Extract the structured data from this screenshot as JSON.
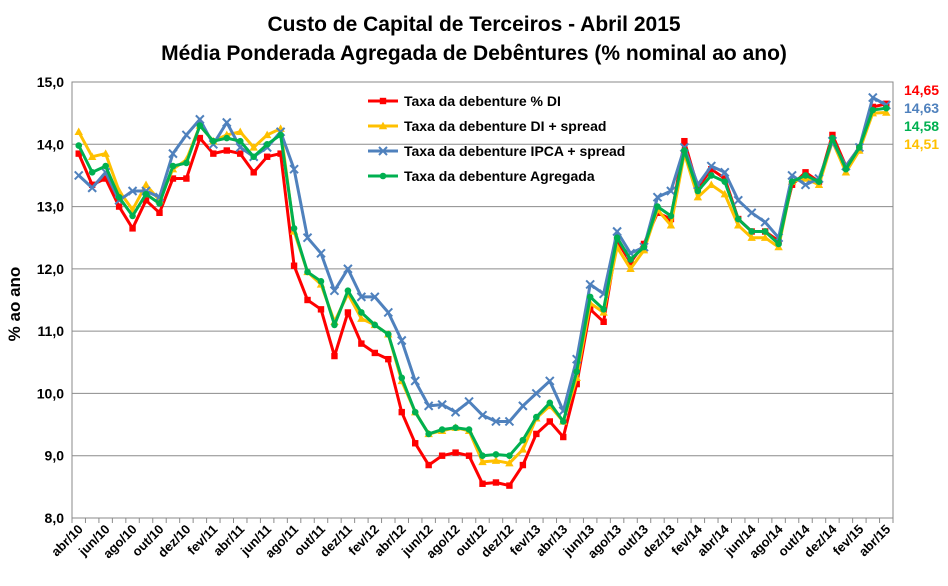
{
  "chart_data": {
    "type": "line",
    "title": "Custo de Capital de Terceiros - Abril 2015",
    "subtitle": "Média Ponderada Agregada de Debêntures (% nominal ao ano)",
    "xlabel": "",
    "ylabel": "% ao ano",
    "ylim": [
      8.0,
      15.0
    ],
    "y_ticks": [
      "8,0",
      "9,0",
      "10,0",
      "11,0",
      "12,0",
      "13,0",
      "14,0",
      "15,0"
    ],
    "grid": true,
    "legend_position": "top-center",
    "x": [
      "abr/10",
      "mai/10",
      "jun/10",
      "jul/10",
      "ago/10",
      "set/10",
      "out/10",
      "nov/10",
      "dez/10",
      "jan/11",
      "fev/11",
      "mar/11",
      "abr/11",
      "mai/11",
      "jun/11",
      "jul/11",
      "ago/11",
      "set/11",
      "out/11",
      "nov/11",
      "dez/11",
      "jan/12",
      "fev/12",
      "mar/12",
      "abr/12",
      "mai/12",
      "jun/12",
      "jul/12",
      "ago/12",
      "set/12",
      "out/12",
      "nov/12",
      "dez/12",
      "jan/13",
      "fev/13",
      "mar/13",
      "abr/13",
      "mai/13",
      "jun/13",
      "jul/13",
      "ago/13",
      "set/13",
      "out/13",
      "nov/13",
      "dez/13",
      "jan/14",
      "fev/14",
      "mar/14",
      "abr/14",
      "mai/14",
      "jun/14",
      "jul/14",
      "ago/14",
      "set/14",
      "out/14",
      "nov/14",
      "dez/14",
      "jan/15",
      "fev/15",
      "mar/15",
      "abr/15"
    ],
    "x_tick_labels": [
      "abr/10",
      "jun/10",
      "ago/10",
      "out/10",
      "dez/10",
      "fev/11",
      "abr/11",
      "jun/11",
      "ago/11",
      "out/11",
      "dez/11",
      "fev/12",
      "abr/12",
      "jun/12",
      "ago/12",
      "out/12",
      "dez/12",
      "fev/13",
      "abr/13",
      "jun/13",
      "ago/13",
      "out/13",
      "dez/13",
      "fev/14",
      "abr/14",
      "jun/14",
      "ago/14",
      "out/14",
      "dez/14",
      "fev/15",
      "abr/15"
    ],
    "series": [
      {
        "name": "Taxa da debenture % DI",
        "color": "#ff0000",
        "marker": "square",
        "values": [
          13.85,
          13.35,
          13.45,
          13.0,
          12.65,
          13.1,
          12.9,
          13.45,
          13.45,
          14.1,
          13.85,
          13.9,
          13.85,
          13.55,
          13.8,
          13.85,
          12.05,
          11.5,
          11.35,
          10.6,
          11.3,
          10.8,
          10.65,
          10.55,
          9.7,
          9.2,
          8.85,
          9.0,
          9.05,
          9.0,
          8.55,
          8.57,
          8.52,
          8.85,
          9.35,
          9.55,
          9.3,
          10.15,
          11.35,
          11.15,
          12.45,
          12.1,
          12.4,
          12.9,
          12.8,
          14.05,
          13.3,
          13.6,
          13.45,
          12.8,
          12.6,
          12.6,
          12.45,
          13.35,
          13.55,
          13.4,
          14.15,
          13.65,
          13.95,
          14.6,
          14.65
        ]
      },
      {
        "name": "Taxa da debenture DI + spread",
        "color": "#ffc000",
        "marker": "triangle",
        "values": [
          14.2,
          13.8,
          13.85,
          13.25,
          12.95,
          13.35,
          13.1,
          13.6,
          13.75,
          14.3,
          14.05,
          14.15,
          14.2,
          13.95,
          14.15,
          14.25,
          12.6,
          11.95,
          11.75,
          11.15,
          11.6,
          11.2,
          11.1,
          10.95,
          10.2,
          9.7,
          9.35,
          9.4,
          9.45,
          9.4,
          8.9,
          8.92,
          8.88,
          9.1,
          9.6,
          9.8,
          9.55,
          10.25,
          11.45,
          11.3,
          12.35,
          12.0,
          12.3,
          12.95,
          12.7,
          13.85,
          13.15,
          13.35,
          13.2,
          12.7,
          12.5,
          12.5,
          12.35,
          13.4,
          13.45,
          13.35,
          14.05,
          13.55,
          13.9,
          14.5,
          14.51
        ]
      },
      {
        "name": "Taxa da debenture IPCA + spread",
        "color": "#4f81bd",
        "marker": "x",
        "values": [
          13.5,
          13.3,
          13.55,
          13.1,
          13.25,
          13.25,
          13.15,
          13.85,
          14.15,
          14.4,
          14.0,
          14.35,
          13.95,
          13.8,
          13.95,
          14.2,
          13.6,
          12.5,
          12.25,
          11.65,
          12.0,
          11.55,
          11.55,
          11.3,
          10.85,
          10.2,
          9.8,
          9.82,
          9.7,
          9.87,
          9.65,
          9.55,
          9.55,
          9.8,
          10.0,
          10.2,
          9.72,
          10.55,
          11.75,
          11.6,
          12.6,
          12.25,
          12.35,
          13.15,
          13.25,
          13.95,
          13.35,
          13.65,
          13.55,
          13.1,
          12.9,
          12.75,
          12.5,
          13.5,
          13.35,
          13.45,
          14.05,
          13.65,
          13.95,
          14.75,
          14.63
        ]
      },
      {
        "name": "Taxa da debenture Agregada",
        "color": "#00b050",
        "marker": "circle",
        "values": [
          13.98,
          13.55,
          13.65,
          13.15,
          12.85,
          13.2,
          13.05,
          13.65,
          13.7,
          14.3,
          14.05,
          14.1,
          14.05,
          13.8,
          14.0,
          14.15,
          12.65,
          11.95,
          11.8,
          11.1,
          11.65,
          11.3,
          11.1,
          10.95,
          10.25,
          9.7,
          9.35,
          9.42,
          9.45,
          9.42,
          9.0,
          9.02,
          9.0,
          9.25,
          9.62,
          9.85,
          9.55,
          10.35,
          11.55,
          11.35,
          12.5,
          12.15,
          12.35,
          13.0,
          12.85,
          13.9,
          13.25,
          13.5,
          13.4,
          12.8,
          12.6,
          12.6,
          12.4,
          13.4,
          13.5,
          13.4,
          14.1,
          13.6,
          13.95,
          14.55,
          14.58
        ]
      }
    ],
    "end_labels": [
      {
        "text": "14,65",
        "color": "#ff0000"
      },
      {
        "text": "14,63",
        "color": "#4f81bd"
      },
      {
        "text": "14,58",
        "color": "#00b050"
      },
      {
        "text": "14,51",
        "color": "#ffc000"
      }
    ]
  }
}
